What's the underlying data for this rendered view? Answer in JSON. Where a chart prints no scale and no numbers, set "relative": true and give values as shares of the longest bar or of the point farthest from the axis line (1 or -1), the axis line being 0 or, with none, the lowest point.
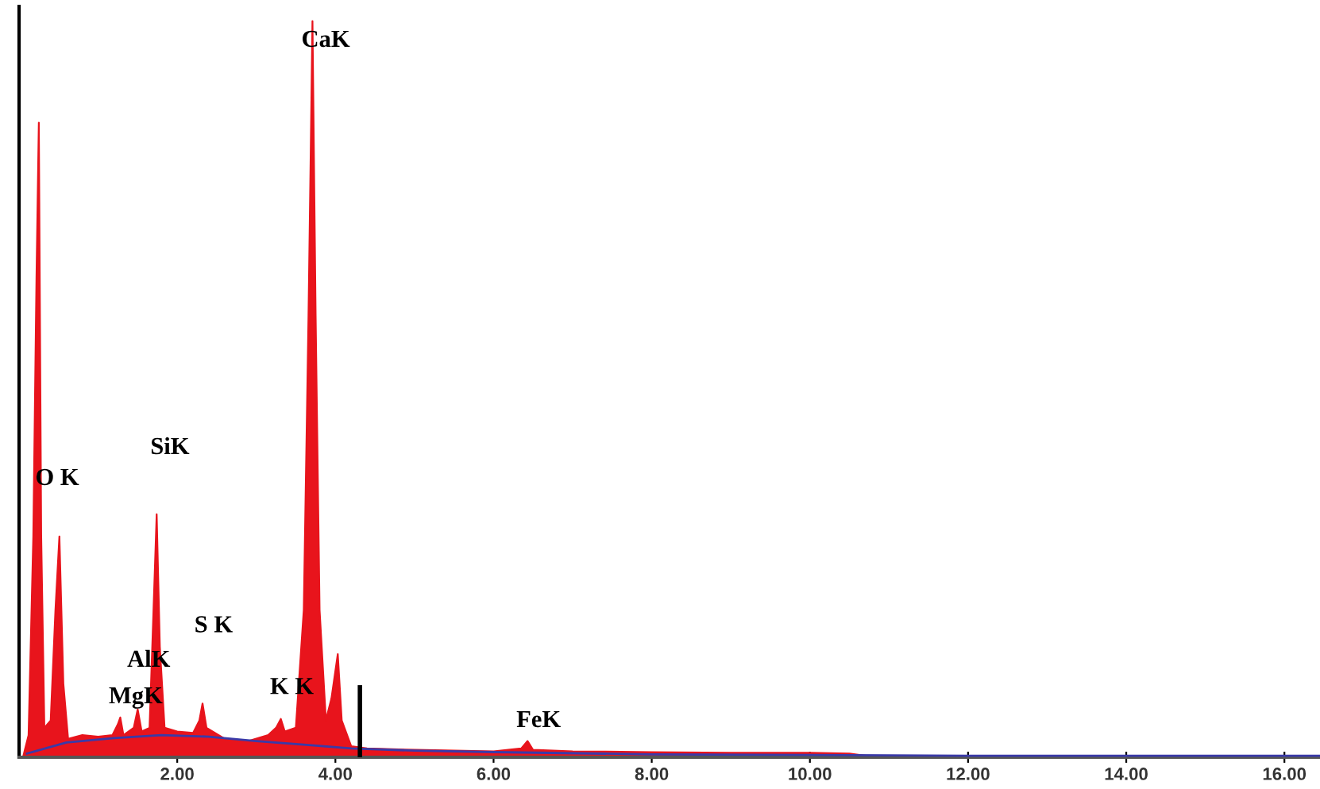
{
  "chart_data": {
    "type": "area",
    "relative": true,
    "xlim": [
      0,
      16.45
    ],
    "xticks": [
      {
        "value": 2,
        "label": "2.00"
      },
      {
        "value": 4,
        "label": "4.00"
      },
      {
        "value": 6,
        "label": "6.00"
      },
      {
        "value": 8,
        "label": "8.00"
      },
      {
        "value": 10,
        "label": "10.00"
      },
      {
        "value": 12,
        "label": "12.00"
      },
      {
        "value": 14,
        "label": "14.00"
      },
      {
        "value": 16,
        "label": "16.00"
      }
    ],
    "grid": false,
    "legend": false,
    "series": [
      {
        "color": "#e8141c",
        "x": [
          0.05,
          0.12,
          0.18,
          0.22,
          0.25,
          0.28,
          0.32,
          0.4,
          0.46,
          0.51,
          0.56,
          0.62,
          0.8,
          1.0,
          1.18,
          1.25,
          1.28,
          1.32,
          1.45,
          1.5,
          1.55,
          1.65,
          1.7,
          1.74,
          1.78,
          1.84,
          2.0,
          2.2,
          2.28,
          2.32,
          2.37,
          2.6,
          2.9,
          3.15,
          3.25,
          3.31,
          3.36,
          3.5,
          3.6,
          3.66,
          3.71,
          3.75,
          3.8,
          3.88,
          3.95,
          4.03,
          4.08,
          4.2,
          4.4,
          5.0,
          6.0,
          6.35,
          6.43,
          6.5,
          7.0,
          8.0,
          9.0,
          10.0,
          10.5,
          10.7,
          12.0,
          16.45
        ],
        "values": [
          0,
          0.03,
          0.3,
          0.65,
          0.862,
          0.3,
          0.04,
          0.05,
          0.2,
          0.3,
          0.1,
          0.025,
          0.03,
          0.028,
          0.03,
          0.045,
          0.054,
          0.03,
          0.04,
          0.065,
          0.035,
          0.04,
          0.2,
          0.33,
          0.15,
          0.04,
          0.035,
          0.033,
          0.05,
          0.073,
          0.04,
          0.025,
          0.022,
          0.03,
          0.04,
          0.052,
          0.035,
          0.04,
          0.2,
          0.6,
          1.0,
          0.6,
          0.2,
          0.05,
          0.08,
          0.14,
          0.05,
          0.015,
          0.012,
          0.01,
          0.008,
          0.012,
          0.022,
          0.01,
          0.008,
          0.007,
          0.006,
          0.006,
          0.005,
          0.002,
          0.001,
          0.001
        ]
      },
      {
        "type": "line",
        "color": "#3a3aa8",
        "x": [
          0.1,
          0.6,
          1.2,
          1.8,
          2.4,
          3.0,
          3.6,
          4.2,
          5.0,
          6.0,
          8.0,
          10.0,
          12.0,
          16.45
        ],
        "values": [
          0.005,
          0.02,
          0.026,
          0.03,
          0.028,
          0.022,
          0.017,
          0.012,
          0.009,
          0.007,
          0.004,
          0.003,
          0.002,
          0.002
        ]
      },
      {
        "type": "line",
        "color": "#000000",
        "x": [
          4.31,
          4.31
        ],
        "values": [
          0,
          0.095
        ]
      }
    ],
    "annotations": [
      {
        "text": "CaK",
        "x": 3.71,
        "y": 1.0
      },
      {
        "text": "O K",
        "x": 0.51,
        "y": 0.3
      },
      {
        "text": "SiK",
        "x": 1.74,
        "y": 0.33
      },
      {
        "text": "S K",
        "x": 2.32,
        "y": 0.073
      },
      {
        "text": "AlK",
        "x": 1.5,
        "y": 0.065
      },
      {
        "text": "MgK",
        "x": 1.28,
        "y": 0.054
      },
      {
        "text": "K K",
        "x": 3.31,
        "y": 0.052
      },
      {
        "text": "FeK",
        "x": 6.43,
        "y": 0.022
      }
    ]
  }
}
